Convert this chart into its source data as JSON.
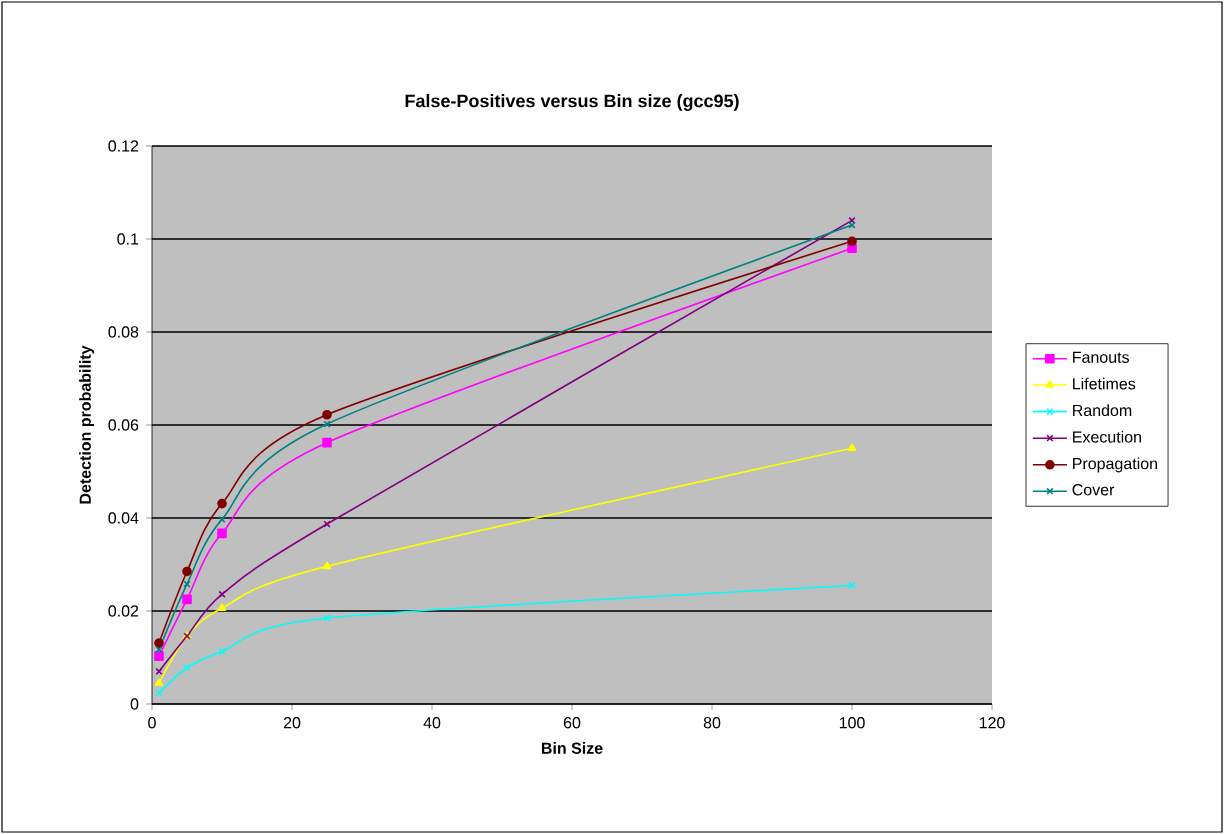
{
  "chart_data": {
    "type": "line",
    "title": "False-Positives versus Bin size (gcc95)",
    "xlabel": "Bin Size",
    "ylabel": "Detection probability",
    "x": [
      1,
      5,
      10,
      25,
      100
    ],
    "series": [
      {
        "name": "Fanouts",
        "color": "#ff00ff",
        "marker": "square",
        "values": [
          0.0103,
          0.0225,
          0.0367,
          0.0562,
          0.098
        ]
      },
      {
        "name": "Lifetimes",
        "color": "#ffff00",
        "marker": "triangle",
        "values": [
          0.0045,
          0.0146,
          0.0206,
          0.0296,
          0.055
        ]
      },
      {
        "name": "Random",
        "color": "#00ffff",
        "marker": "cross",
        "values": [
          0.0024,
          0.0078,
          0.0113,
          0.0185,
          0.0255
        ]
      },
      {
        "name": "Execution",
        "color": "#800080",
        "marker": "cross",
        "values": [
          0.007,
          0.0146,
          0.0236,
          0.0387,
          0.104
        ]
      },
      {
        "name": "Propagation",
        "color": "#800000",
        "marker": "circle",
        "values": [
          0.0131,
          0.0285,
          0.0431,
          0.0622,
          0.0995
        ]
      },
      {
        "name": "Cover",
        "color": "#008080",
        "marker": "cross",
        "values": [
          0.0117,
          0.0258,
          0.0397,
          0.0602,
          0.103
        ]
      }
    ],
    "xlim": [
      0,
      120
    ],
    "xticks": [
      0,
      20,
      40,
      60,
      80,
      100,
      120
    ],
    "ylim": [
      0,
      0.12
    ],
    "yticks": [
      0,
      {
        "value": 0.02,
        "label": "0.02"
      },
      {
        "value": 0.04,
        "label": "0.04"
      },
      {
        "value": 0.06,
        "label": "0.06"
      },
      {
        "value": 0.08,
        "label": "0.08"
      },
      {
        "value": 0.1,
        "label": "0.1"
      },
      {
        "value": 0.12,
        "label": "0.12"
      }
    ],
    "grid": "y",
    "legend": "right"
  }
}
